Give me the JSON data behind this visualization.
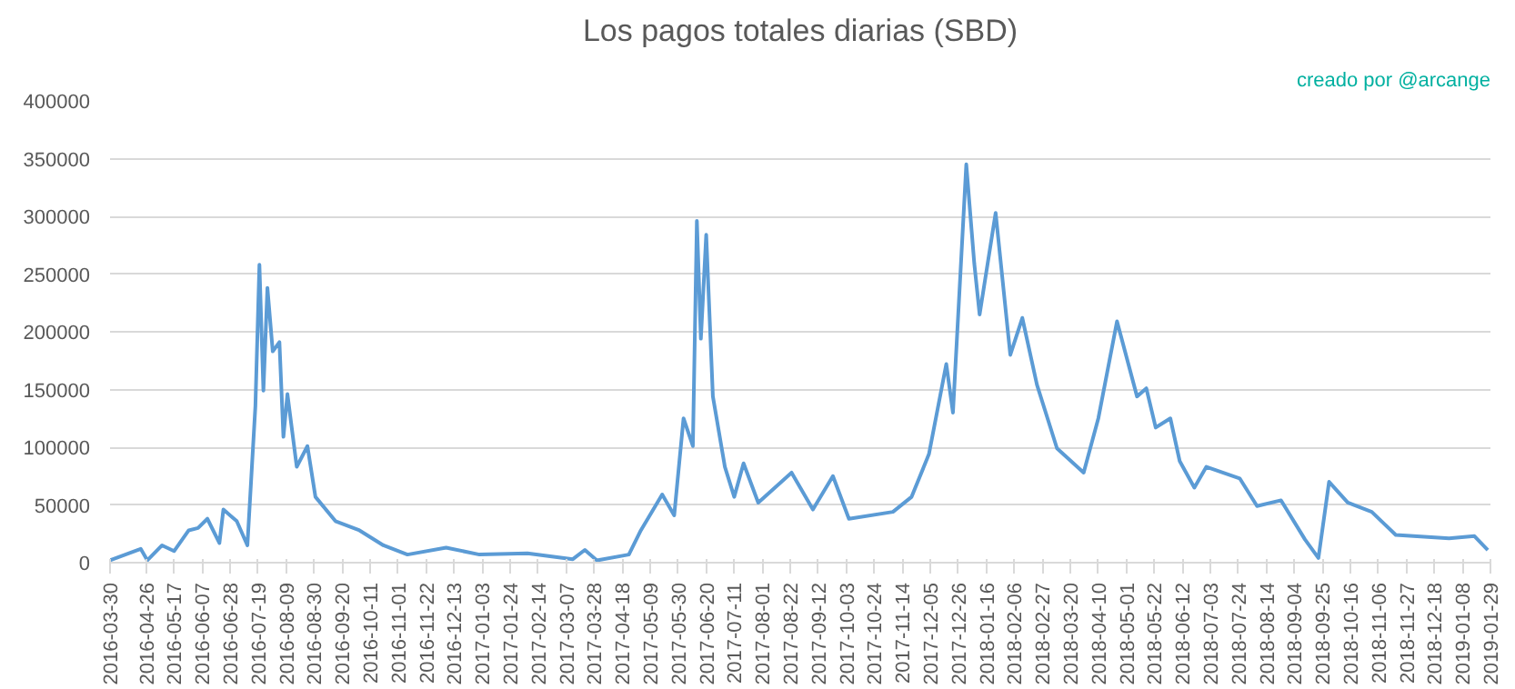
{
  "chart_data": {
    "type": "line",
    "title": "Los pagos totales diarias (SBD)",
    "annotations": [
      "creado por @arcange"
    ],
    "x": [
      "2016-03-30",
      "2016-04-22",
      "2016-04-27",
      "2016-05-08",
      "2016-05-17",
      "2016-05-28",
      "2016-06-04",
      "2016-06-11",
      "2016-06-20",
      "2016-06-23",
      "2016-07-03",
      "2016-07-11",
      "2016-07-17",
      "2016-07-20",
      "2016-07-23",
      "2016-07-26",
      "2016-07-30",
      "2016-08-04",
      "2016-08-07",
      "2016-08-10",
      "2016-08-17",
      "2016-08-25",
      "2016-08-31",
      "2016-09-15",
      "2016-10-03",
      "2016-10-21",
      "2016-11-08",
      "2016-12-07",
      "2017-01-01",
      "2017-02-06",
      "2017-03-12",
      "2017-03-21",
      "2017-03-30",
      "2017-04-23",
      "2017-05-02",
      "2017-05-18",
      "2017-05-27",
      "2017-06-03",
      "2017-06-10",
      "2017-06-13",
      "2017-06-16",
      "2017-06-20",
      "2017-06-25",
      "2017-07-04",
      "2017-07-11",
      "2017-07-18",
      "2017-07-29",
      "2017-08-23",
      "2017-09-08",
      "2017-09-23",
      "2017-10-05",
      "2017-11-07",
      "2017-11-21",
      "2017-12-04",
      "2017-12-17",
      "2017-12-22",
      "2018-01-01",
      "2018-01-07",
      "2018-01-11",
      "2018-01-23",
      "2018-02-03",
      "2018-02-12",
      "2018-02-23",
      "2018-03-10",
      "2018-03-30",
      "2018-04-10",
      "2018-04-24",
      "2018-05-09",
      "2018-05-16",
      "2018-05-23",
      "2018-06-03",
      "2018-06-10",
      "2018-06-21",
      "2018-06-30",
      "2018-07-25",
      "2018-08-07",
      "2018-08-25",
      "2018-09-12",
      "2018-09-22",
      "2018-09-30",
      "2018-10-14",
      "2018-11-01",
      "2018-11-19",
      "2018-12-29",
      "2019-01-17",
      "2019-01-27"
    ],
    "series": [
      {
        "color": "#5b9bd5",
        "values": [
          2000,
          12000,
          2000,
          15000,
          10000,
          28000,
          30000,
          38000,
          17000,
          46000,
          36000,
          15000,
          136000,
          258000,
          149000,
          238000,
          183000,
          191000,
          109000,
          146000,
          83000,
          101000,
          57000,
          36000,
          28000,
          15000,
          7000,
          13000,
          7000,
          8000,
          3000,
          11000,
          2000,
          7000,
          28000,
          59000,
          41000,
          125000,
          101000,
          296000,
          194000,
          284000,
          144000,
          83000,
          57000,
          86000,
          52000,
          78000,
          46000,
          75000,
          38000,
          44000,
          57000,
          94000,
          172000,
          130000,
          345000,
          259000,
          215000,
          303000,
          180000,
          212000,
          154000,
          99000,
          78000,
          125000,
          209000,
          144000,
          151000,
          117000,
          125000,
          88000,
          65000,
          83000,
          73000,
          49000,
          54000,
          20000,
          4000,
          70000,
          52000,
          44000,
          24000,
          21000,
          23000,
          11000
        ]
      }
    ],
    "xlim": [
      "2016-03-30",
      "2019-01-29"
    ],
    "xticks": [
      "2016-03-30",
      "2016-04-26",
      "2016-05-17",
      "2016-06-07",
      "2016-06-28",
      "2016-07-19",
      "2016-08-09",
      "2016-08-30",
      "2016-09-20",
      "2016-10-11",
      "2016-11-01",
      "2016-11-22",
      "2016-12-13",
      "2017-01-03",
      "2017-01-24",
      "2017-02-14",
      "2017-03-07",
      "2017-03-28",
      "2017-04-18",
      "2017-05-09",
      "2017-05-30",
      "2017-06-20",
      "2017-07-11",
      "2017-08-01",
      "2017-08-22",
      "2017-09-12",
      "2017-10-03",
      "2017-10-24",
      "2017-11-14",
      "2017-12-05",
      "2017-12-26",
      "2018-01-16",
      "2018-02-06",
      "2018-02-27",
      "2018-03-20",
      "2018-04-10",
      "2018-05-01",
      "2018-05-22",
      "2018-06-12",
      "2018-07-03",
      "2018-07-24",
      "2018-08-14",
      "2018-09-04",
      "2018-09-25",
      "2018-10-16",
      "2018-11-06",
      "2018-11-27",
      "2018-12-18",
      "2019-01-08",
      "2019-01-29"
    ],
    "ylim": [
      0,
      400000
    ],
    "yticks": [
      0,
      50000,
      100000,
      150000,
      200000,
      250000,
      300000,
      350000,
      400000
    ],
    "grid": "y",
    "marker": "none",
    "line_style": "solid"
  }
}
